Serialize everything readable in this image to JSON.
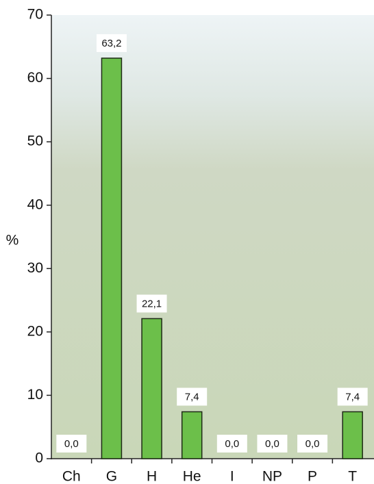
{
  "chart_data": {
    "type": "bar",
    "y_label": "%",
    "categories": [
      "Ch",
      "G",
      "H",
      "He",
      "I",
      "NP",
      "P",
      "T"
    ],
    "values": [
      0.0,
      63.2,
      22.1,
      7.4,
      0.0,
      0.0,
      0.0,
      7.4
    ],
    "value_labels": [
      "0,0",
      "63,2",
      "22,1",
      "7,4",
      "0,0",
      "0,0",
      "0,0",
      "7,4"
    ],
    "color": "#6cbf4a",
    "ylim": [
      0,
      70
    ],
    "yticks": [
      0,
      10,
      20,
      30,
      40,
      50,
      60,
      70
    ],
    "grid": false
  }
}
